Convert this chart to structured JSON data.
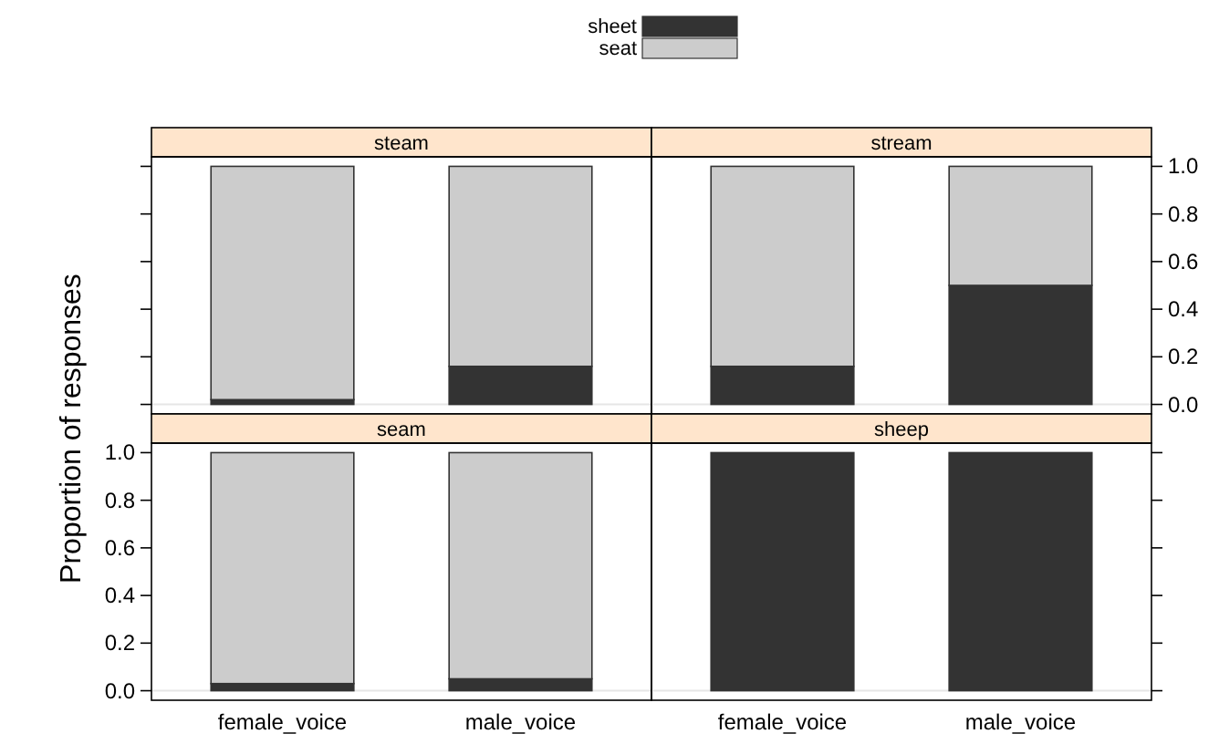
{
  "chart_data": [
    {
      "type": "bar",
      "title": "steam",
      "categories": [
        null,
        null
      ],
      "stacked": true,
      "ylim": [
        -0.04,
        1.04
      ],
      "yticks": [
        {
          "value": 0,
          "label": null
        },
        {
          "value": 0.2,
          "label": null
        },
        {
          "value": 0.4,
          "label": null
        },
        {
          "value": 0.6,
          "label": null
        },
        {
          "value": 0.8,
          "label": null
        },
        {
          "value": 1,
          "label": null
        }
      ],
      "tick_labels": false,
      "legend": "top",
      "ref_lines": [
        {
          "axis": "y",
          "value": 0,
          "color": "#e6e6e6"
        }
      ],
      "series": [
        {
          "name": "sheet",
          "color": "#333333",
          "values": [
            0.02,
            0.16
          ]
        },
        {
          "name": "seat",
          "color": "#cccccc",
          "values": [
            0.98,
            0.84
          ]
        }
      ]
    },
    {
      "type": "bar",
      "title": "stream",
      "categories": [
        null,
        null
      ],
      "stacked": true,
      "ylim": [
        -0.04,
        1.04
      ],
      "yticks": [
        {
          "value": 0,
          "label": "0.0"
        },
        {
          "value": 0.2,
          "label": "0.2"
        },
        {
          "value": 0.4,
          "label": "0.4"
        },
        {
          "value": 0.6,
          "label": "0.6"
        },
        {
          "value": 0.8,
          "label": "0.8"
        },
        {
          "value": 1,
          "label": "1.0"
        }
      ],
      "tick_labels": "y",
      "ref_lines": [
        {
          "axis": "y",
          "value": 0,
          "color": "#e6e6e6"
        }
      ],
      "series": [
        {
          "color": "#333333",
          "values": [
            0.16,
            0.5
          ]
        },
        {
          "color": "#cccccc",
          "values": [
            0.84,
            0.5
          ]
        }
      ]
    },
    {
      "type": "bar",
      "title": "seam",
      "ylabel": "Proportion of responses",
      "categories": [
        "female_voice",
        "male_voice"
      ],
      "stacked": true,
      "ylim": [
        -0.04,
        1.04
      ],
      "yticks": [
        {
          "value": 0,
          "label": "0.0"
        },
        {
          "value": 0.2,
          "label": "0.2"
        },
        {
          "value": 0.4,
          "label": "0.4"
        },
        {
          "value": 0.6,
          "label": "0.6"
        },
        {
          "value": 0.8,
          "label": "0.8"
        },
        {
          "value": 1,
          "label": "1.0"
        }
      ],
      "ref_lines": [
        {
          "axis": "y",
          "value": 0,
          "color": "#e6e6e6"
        }
      ],
      "series": [
        {
          "color": "#333333",
          "values": [
            0.03,
            0.05
          ]
        },
        {
          "color": "#cccccc",
          "values": [
            0.97,
            0.95
          ]
        }
      ]
    },
    {
      "type": "bar",
      "title": "sheep",
      "categories": [
        "female_voice",
        "male_voice"
      ],
      "stacked": true,
      "ylim": [
        -0.04,
        1.04
      ],
      "yticks": [
        {
          "value": 0,
          "label": null
        },
        {
          "value": 0.2,
          "label": null
        },
        {
          "value": 0.4,
          "label": null
        },
        {
          "value": 0.6,
          "label": null
        },
        {
          "value": 0.8,
          "label": null
        },
        {
          "value": 1,
          "label": null
        }
      ],
      "tick_labels": "x",
      "ref_lines": [
        {
          "axis": "y",
          "value": 0,
          "color": "#e6e6e6"
        }
      ],
      "series": [
        {
          "color": "#333333",
          "values": [
            1,
            1
          ]
        },
        {
          "color": "#cccccc",
          "values": [
            0,
            0
          ]
        }
      ]
    }
  ]
}
